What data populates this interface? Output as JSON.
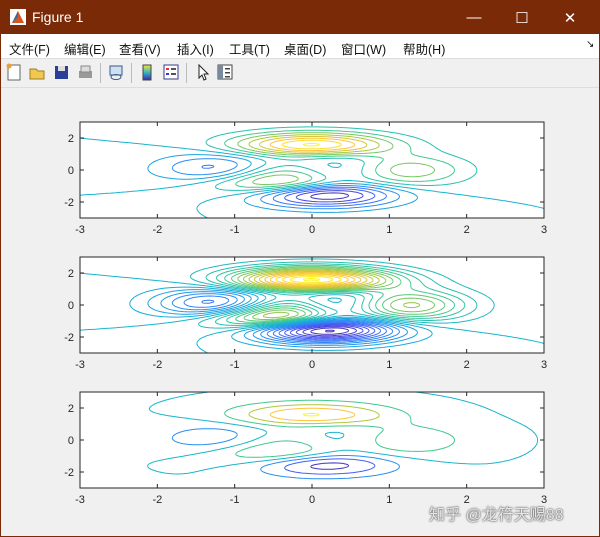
{
  "window": {
    "title": "Figure 1",
    "minimize": "—",
    "maximize": "☐",
    "close": "✕",
    "title_bar_color": "#7b2a07"
  },
  "menu": {
    "items": [
      "文件(F)",
      "编辑(E)",
      "查看(V)",
      "插入(I)",
      "工具(T)",
      "桌面(D)",
      "窗口(W)",
      "帮助(H)"
    ],
    "dock_arrow": "↘"
  },
  "toolbar": {
    "icons": [
      "new-figure-icon",
      "open-file-icon",
      "save-icon",
      "print-icon",
      "link-plot-icon",
      "insert-colorbar-icon",
      "insert-legend-icon",
      "edit-plot-pointer-icon",
      "property-inspector-icon"
    ]
  },
  "watermark": "知乎 @龙符天赐88",
  "chart_data": [
    {
      "type": "contour",
      "line_style": "solid",
      "xlim": [
        -3,
        3
      ],
      "ylim": [
        -3,
        3
      ],
      "xticks": [
        "-3",
        "-2",
        "-1",
        "0",
        "1",
        "2",
        "3"
      ],
      "yticks": [
        "2",
        "0",
        "-2"
      ],
      "levels": [
        -6,
        -5,
        -4,
        -3,
        -2,
        -1,
        0,
        1,
        2,
        3,
        4,
        5,
        6,
        7,
        8
      ],
      "colormap": "parula"
    },
    {
      "type": "contour",
      "line_style": "solid",
      "xlim": [
        -3,
        3
      ],
      "ylim": [
        -3,
        3
      ],
      "xticks": [
        "-3",
        "-2",
        "-1",
        "0",
        "1",
        "2",
        "3"
      ],
      "yticks": [
        "2",
        "0",
        "-2"
      ],
      "levels": [
        -6.5,
        -6,
        -5.5,
        -5,
        -4.5,
        -4,
        -3.5,
        -3,
        -2.5,
        -2,
        -1.5,
        -1,
        -0.5,
        0,
        0.5,
        1,
        1.5,
        2,
        2.5,
        3,
        3.5,
        4,
        4.5,
        5,
        5.5,
        6,
        6.5,
        7,
        7.5,
        8
      ],
      "colormap": "parula"
    },
    {
      "type": "contour",
      "line_style": "dashed",
      "xlim": [
        -3,
        3
      ],
      "ylim": [
        -3,
        3
      ],
      "xticks": [
        "-3",
        "-2",
        "-1",
        "0",
        "1",
        "2",
        "3"
      ],
      "yticks": [
        "2",
        "0",
        "-2"
      ],
      "levels": [
        -6,
        -4,
        -2,
        0.05,
        2,
        4,
        6,
        8
      ],
      "colormap": "parula"
    }
  ]
}
